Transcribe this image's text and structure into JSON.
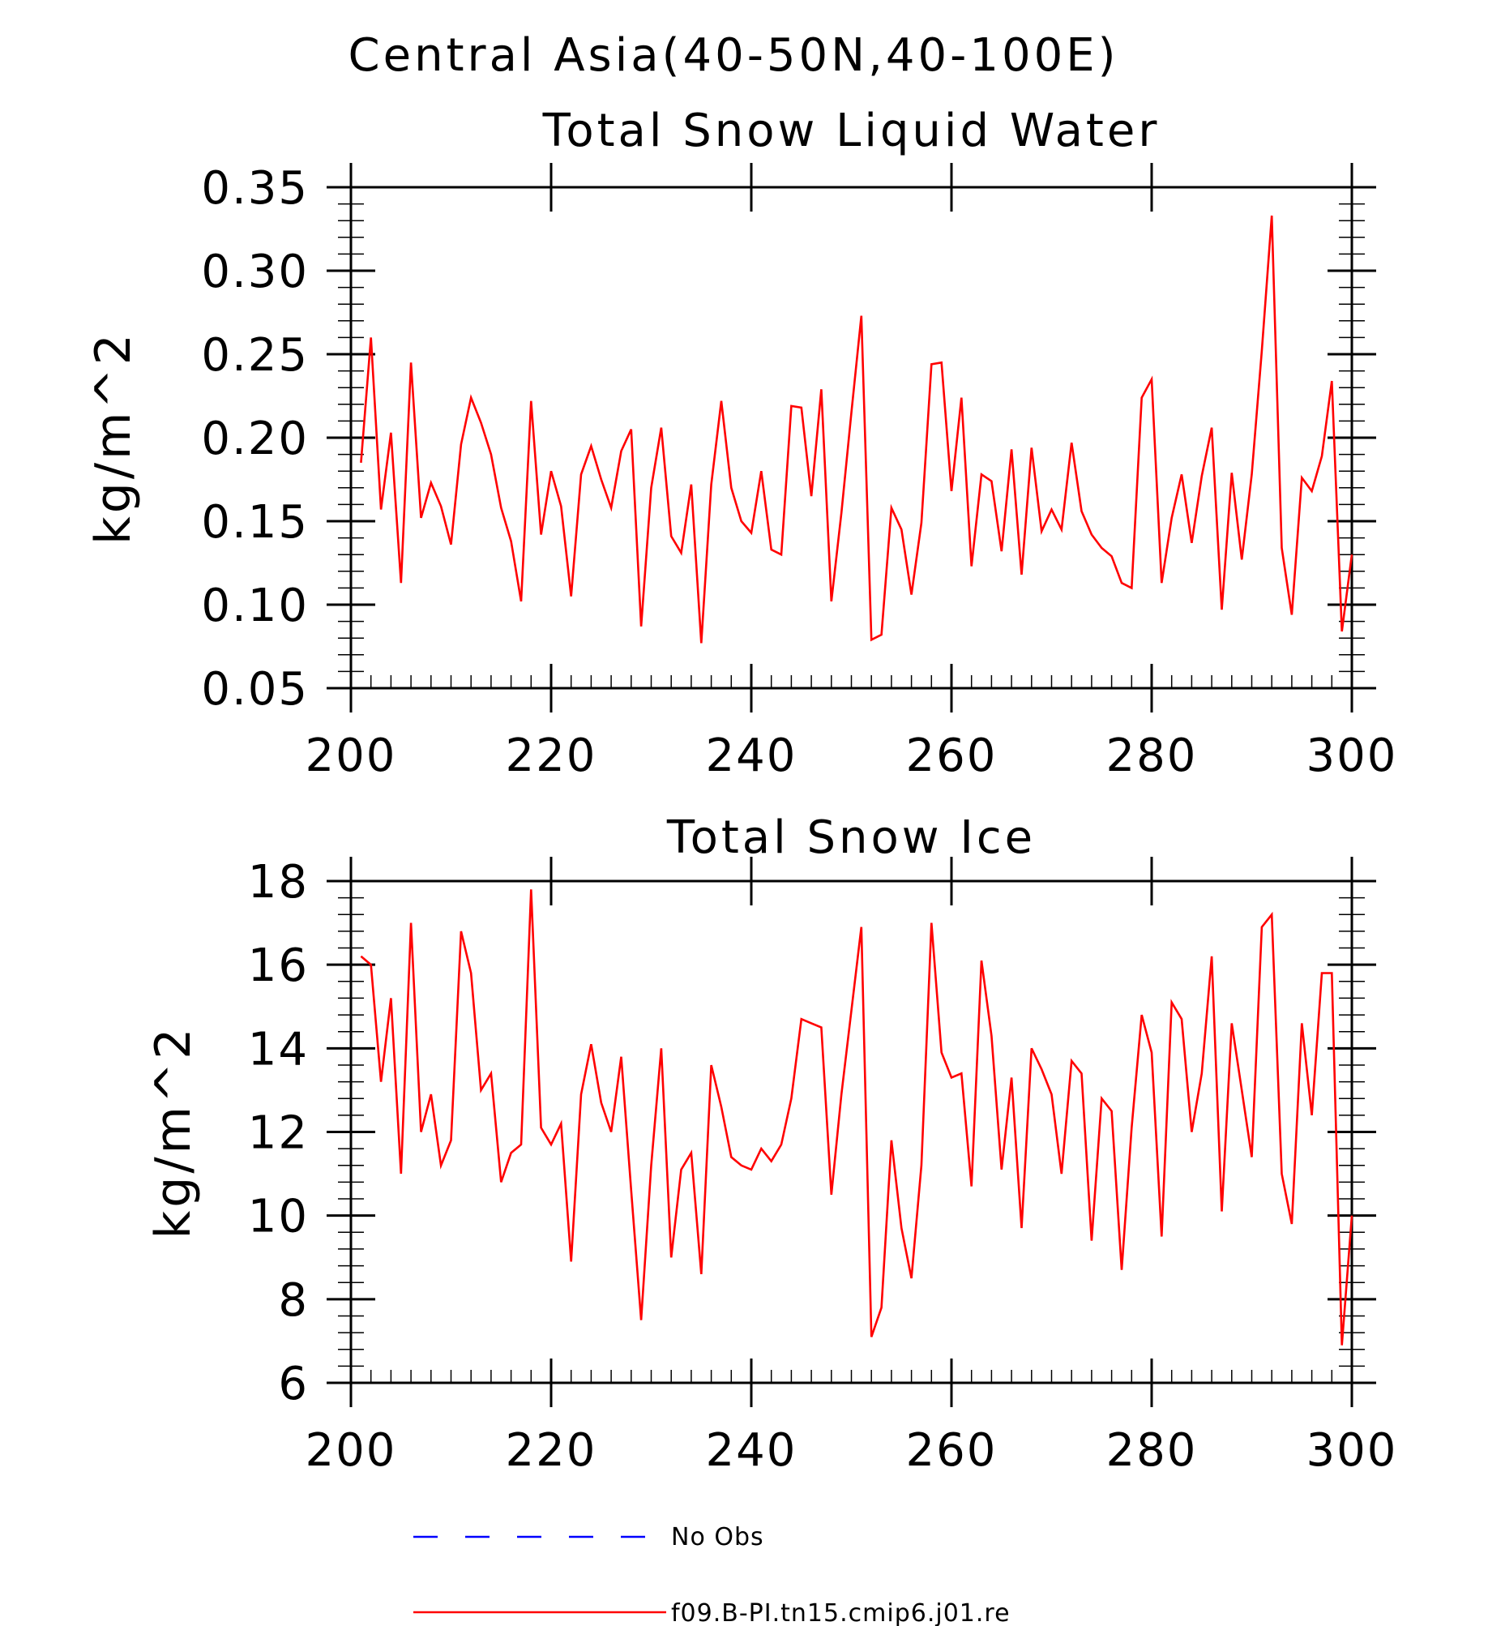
{
  "page_title": "Central Asia(40-50N,40-100E)",
  "chart_data": [
    {
      "type": "line",
      "title": "Total Snow Liquid Water",
      "xlabel": "",
      "ylabel": "kg/m^2",
      "xlim": [
        200,
        300
      ],
      "ylim": [
        0.05,
        0.35
      ],
      "x_ticks": [
        200,
        220,
        240,
        260,
        280,
        300
      ],
      "y_ticks": [
        "0.05",
        "0.10",
        "0.15",
        "0.20",
        "0.25",
        "0.30",
        "0.35"
      ],
      "y_minor_step": 0.01,
      "x_minor_step": 2,
      "series": [
        {
          "name": "f09.B-PI.tn15.cmip6.j01.re",
          "color": "#ff0000",
          "x_start": 201,
          "x_step": 1,
          "values": [
            0.185,
            0.26,
            0.157,
            0.203,
            0.113,
            0.245,
            0.152,
            0.173,
            0.159,
            0.136,
            0.196,
            0.224,
            0.209,
            0.19,
            0.158,
            0.138,
            0.102,
            0.222,
            0.142,
            0.18,
            0.159,
            0.105,
            0.178,
            0.195,
            0.175,
            0.158,
            0.192,
            0.205,
            0.087,
            0.17,
            0.206,
            0.141,
            0.131,
            0.172,
            0.077,
            0.172,
            0.222,
            0.17,
            0.15,
            0.143,
            0.18,
            0.133,
            0.13,
            0.219,
            0.218,
            0.165,
            0.229,
            0.102,
            0.155,
            0.215,
            0.273,
            0.079,
            0.082,
            0.158,
            0.145,
            0.106,
            0.149,
            0.244,
            0.245,
            0.168,
            0.224,
            0.123,
            0.178,
            0.174,
            0.132,
            0.193,
            0.118,
            0.194,
            0.144,
            0.157,
            0.145,
            0.197,
            0.156,
            0.142,
            0.134,
            0.129,
            0.113,
            0.11,
            0.224,
            0.235,
            0.113,
            0.152,
            0.178,
            0.137,
            0.177,
            0.206,
            0.097,
            0.179,
            0.127,
            0.178,
            0.252,
            0.333,
            0.134,
            0.094,
            0.176,
            0.168,
            0.189,
            0.234,
            0.084,
            0.13
          ]
        }
      ]
    },
    {
      "type": "line",
      "title": "Total Snow Ice",
      "xlabel": "",
      "ylabel": "kg/m^2",
      "xlim": [
        200,
        300
      ],
      "ylim": [
        6,
        18
      ],
      "x_ticks": [
        200,
        220,
        240,
        260,
        280,
        300
      ],
      "y_ticks": [
        "6",
        "8",
        "10",
        "12",
        "14",
        "16",
        "18"
      ],
      "y_minor_step": 0.4,
      "x_minor_step": 2,
      "series": [
        {
          "name": "f09.B-PI.tn15.cmip6.j01.re",
          "color": "#ff0000",
          "x_start": 201,
          "x_step": 1,
          "values": [
            16.2,
            16.0,
            13.2,
            15.2,
            11.0,
            17.0,
            12.0,
            12.9,
            11.2,
            11.8,
            16.8,
            15.8,
            13.0,
            13.4,
            10.8,
            11.5,
            11.7,
            17.8,
            12.1,
            11.7,
            12.2,
            8.9,
            12.9,
            14.1,
            12.7,
            12.0,
            13.8,
            10.6,
            7.5,
            11.2,
            14.0,
            9.0,
            11.1,
            11.5,
            8.6,
            13.6,
            12.6,
            11.4,
            11.2,
            11.1,
            11.6,
            11.3,
            11.7,
            12.8,
            14.7,
            14.6,
            14.5,
            10.5,
            12.9,
            14.9,
            16.9,
            7.1,
            7.8,
            11.8,
            9.7,
            8.5,
            11.2,
            17.0,
            13.9,
            13.3,
            13.4,
            10.7,
            16.1,
            14.3,
            11.1,
            13.3,
            9.7,
            14.0,
            13.5,
            12.9,
            11.0,
            13.7,
            13.4,
            9.4,
            12.8,
            12.5,
            8.7,
            12.1,
            14.8,
            13.9,
            9.5,
            15.1,
            14.7,
            12.0,
            13.4,
            16.2,
            10.1,
            14.6,
            13.0,
            11.4,
            16.9,
            17.2,
            11.0,
            9.8,
            14.6,
            12.4,
            15.8,
            15.8,
            6.9,
            10.0
          ]
        }
      ]
    }
  ],
  "legend": [
    {
      "label": "No Obs",
      "color": "#0000ff",
      "style": "dashed"
    },
    {
      "label": "f09.B-PI.tn15.cmip6.j01.re",
      "color": "#ff0000",
      "style": "solid"
    }
  ]
}
